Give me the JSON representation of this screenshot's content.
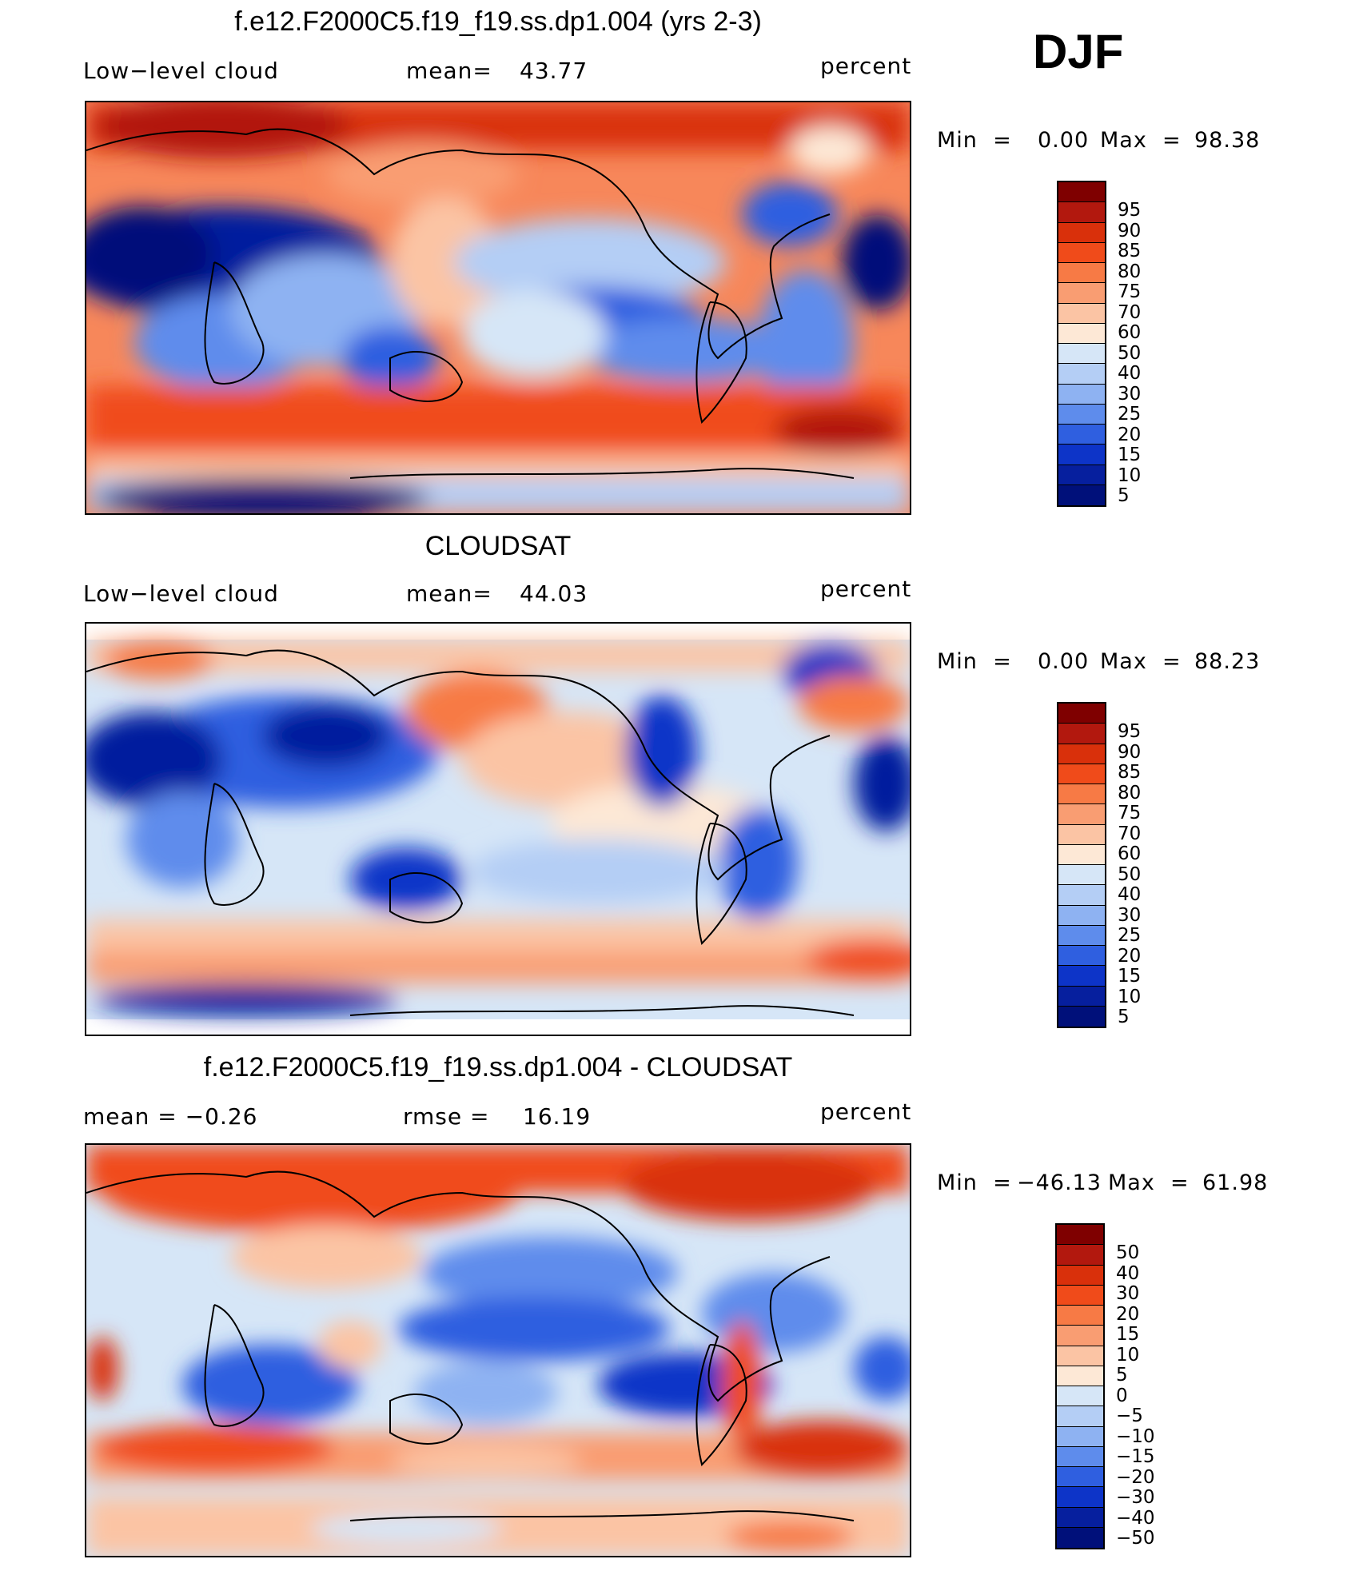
{
  "season": "DJF",
  "panels": [
    {
      "title": "f.e12.F2000C5.f19_f19.ss.dp1.004 (yrs 2-3)",
      "left": "Low−level cloud",
      "mid_label": "mean=",
      "mid_value": "43.77",
      "right": "percent",
      "min_label": "Min  =",
      "min_value": "0.00",
      "max_label": "Max  =",
      "max_value": "98.38",
      "bar_labels": [
        "95",
        "90",
        "85",
        "80",
        "75",
        "70",
        "60",
        "50",
        "40",
        "30",
        "25",
        "20",
        "15",
        "10",
        "5"
      ]
    },
    {
      "title": "CLOUDSAT",
      "left": "Low−level cloud",
      "mid_label": "mean=",
      "mid_value": "44.03",
      "right": "percent",
      "min_label": "Min  =",
      "min_value": "0.00",
      "max_label": "Max  =",
      "max_value": "88.23",
      "bar_labels": [
        "95",
        "90",
        "85",
        "80",
        "75",
        "70",
        "60",
        "50",
        "40",
        "30",
        "25",
        "20",
        "15",
        "10",
        "5"
      ]
    },
    {
      "title": "f.e12.F2000C5.f19_f19.ss.dp1.004 - CLOUDSAT",
      "left": "mean  =   −0.26",
      "mid_label": "rmse  =",
      "mid_value": "16.19",
      "right": "percent",
      "min_label": "Min  =",
      "min_value": "−46.13",
      "max_label": "Max  =",
      "max_value": "61.98",
      "bar_labels": [
        "50",
        "40",
        "30",
        "20",
        "15",
        "10",
        "5",
        "0",
        "−5",
        "−10",
        "−15",
        "−20",
        "−30",
        "−40",
        "−50"
      ]
    }
  ],
  "colors": {
    "ramp": [
      "#7f0000",
      "#b2180e",
      "#d9300b",
      "#f04b1a",
      "#f77a45",
      "#f99d72",
      "#fbc4a4",
      "#fde8d6",
      "#d6e6f7",
      "#b4cef5",
      "#8eb2f2",
      "#5e8cec",
      "#2f5fe0",
      "#0d34c8",
      "#061f9e",
      "#00107a"
    ]
  }
}
